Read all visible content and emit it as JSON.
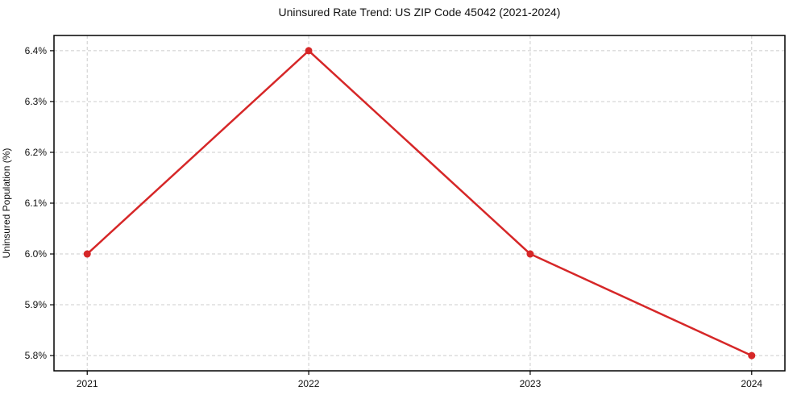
{
  "page": {
    "background_color": "#ffffff",
    "text_color": "#111111"
  },
  "chart_data": {
    "type": "line",
    "title": "Uninsured Rate Trend: US ZIP Code 45042 (2021-2024)",
    "xlabel": "",
    "ylabel": "Uninsured Population (%)",
    "x": [
      2021,
      2022,
      2023,
      2024
    ],
    "series": [
      {
        "name": "Uninsured rate",
        "values": [
          6.0,
          6.4,
          6.0,
          5.8
        ],
        "color": "#d62728",
        "marker": "circle"
      }
    ],
    "xlim": [
      2020.85,
      2024.15
    ],
    "ylim": [
      5.77,
      6.43
    ],
    "xticks": {
      "values": [
        2021,
        2022,
        2023,
        2024
      ],
      "labels": [
        "2021",
        "2022",
        "2023",
        "2024"
      ]
    },
    "yticks": {
      "values": [
        5.8,
        5.9,
        6.0,
        6.1,
        6.2,
        6.3,
        6.4
      ],
      "labels": [
        "5.8%",
        "5.9%",
        "6.0%",
        "6.1%",
        "6.2%",
        "6.3%",
        "6.4%"
      ]
    },
    "grid": true,
    "grid_style": "dashed",
    "grid_color": "#cccccc",
    "spine_color": "#000000",
    "tick_label_color": "#111111",
    "line_width": 2.5,
    "marker_radius": 4.5,
    "legend": false
  }
}
